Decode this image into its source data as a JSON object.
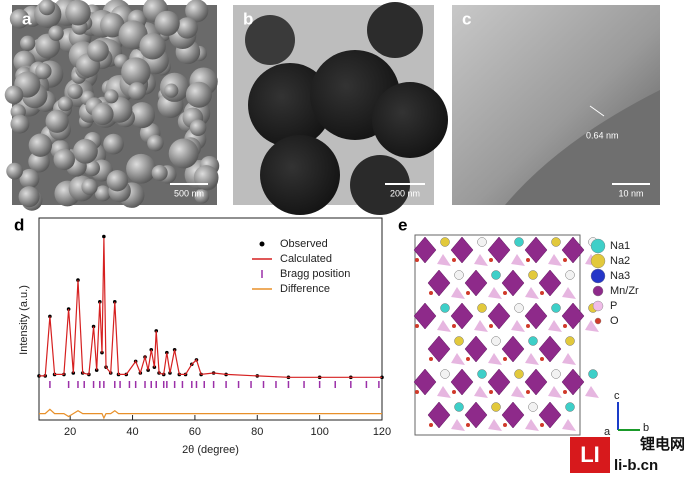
{
  "panels": {
    "a": "a",
    "b": "b",
    "c": "c",
    "d": "d",
    "e": "e"
  },
  "scale_bars": {
    "a": "500 nm",
    "b": "200 nm",
    "c": "10 nm",
    "c_spacing": "0.64 nm"
  },
  "chart_data": {
    "type": "line",
    "xlabel": "2θ (degree)",
    "ylabel": "Intensity (a.u.)",
    "xlim": [
      10,
      120
    ],
    "xticks": [
      20,
      40,
      60,
      80,
      100,
      120
    ],
    "ylim": [
      -25,
      110
    ],
    "x": [
      10,
      12,
      13.5,
      15,
      18,
      19.5,
      21,
      22.5,
      24,
      26,
      27.5,
      28.5,
      29.5,
      30.2,
      30.8,
      31.5,
      33,
      34.3,
      35.5,
      38,
      41,
      42.5,
      44,
      45,
      46,
      47,
      47.6,
      48.5,
      50,
      51,
      52,
      53.5,
      55,
      57,
      59,
      60.5,
      62,
      66,
      70,
      80,
      90,
      100,
      110,
      120
    ],
    "series": [
      {
        "name": "Observed",
        "color": "#000000",
        "values": [
          4,
          4,
          45,
          5,
          5,
          50,
          6,
          70,
          6,
          5,
          38,
          8,
          55,
          20,
          100,
          10,
          6,
          55,
          5,
          5,
          14,
          6,
          17,
          8,
          22,
          10,
          35,
          6,
          5,
          20,
          6,
          22,
          5,
          5,
          12,
          15,
          5,
          6,
          5,
          4,
          3,
          3,
          3,
          3
        ]
      },
      {
        "name": "Calculated",
        "color": "#d62020",
        "values": [
          4,
          4,
          45,
          5,
          5,
          50,
          6,
          70,
          6,
          5,
          38,
          8,
          55,
          20,
          99,
          10,
          6,
          55,
          5,
          5,
          14,
          6,
          17,
          8,
          22,
          10,
          35,
          6,
          5,
          20,
          6,
          22,
          5,
          5,
          12,
          15,
          5,
          6,
          5,
          4,
          3,
          3,
          3,
          3
        ]
      },
      {
        "name": "Difference",
        "color": "#e8902a",
        "values": [
          -22,
          -22,
          -19,
          -22,
          -22,
          -24,
          -22,
          -20,
          -22,
          -22,
          -22,
          -22,
          -22,
          -22,
          -25,
          -22,
          -22,
          -20,
          -22,
          -22,
          -22,
          -22,
          -22,
          -22,
          -22,
          -22,
          -22,
          -22,
          -22,
          -22,
          -22,
          -22,
          -22,
          -22,
          -22,
          -22,
          -22,
          -22,
          -22,
          -22,
          -22,
          -22,
          -22,
          -22
        ]
      }
    ],
    "bragg": {
      "name": "Bragg position",
      "color": "#9b2fa8",
      "positions": [
        13.5,
        19.5,
        22.5,
        24.5,
        27.5,
        29.5,
        30.8,
        34.3,
        36,
        39,
        41,
        44,
        46,
        47.6,
        50,
        51,
        53.5,
        56,
        59,
        60.5,
        63,
        66,
        70,
        74,
        78,
        82,
        86,
        90,
        95,
        100,
        105,
        110,
        115,
        119
      ]
    }
  },
  "structure_legend": [
    "Na1",
    "Na2",
    "Na3",
    "Mn/Zr",
    "P",
    "O"
  ],
  "axes": {
    "c": "c",
    "b": "b",
    "a": "a"
  },
  "watermark": {
    "logo": "LI",
    "name": "锂电网",
    "url": "li-b.cn"
  }
}
